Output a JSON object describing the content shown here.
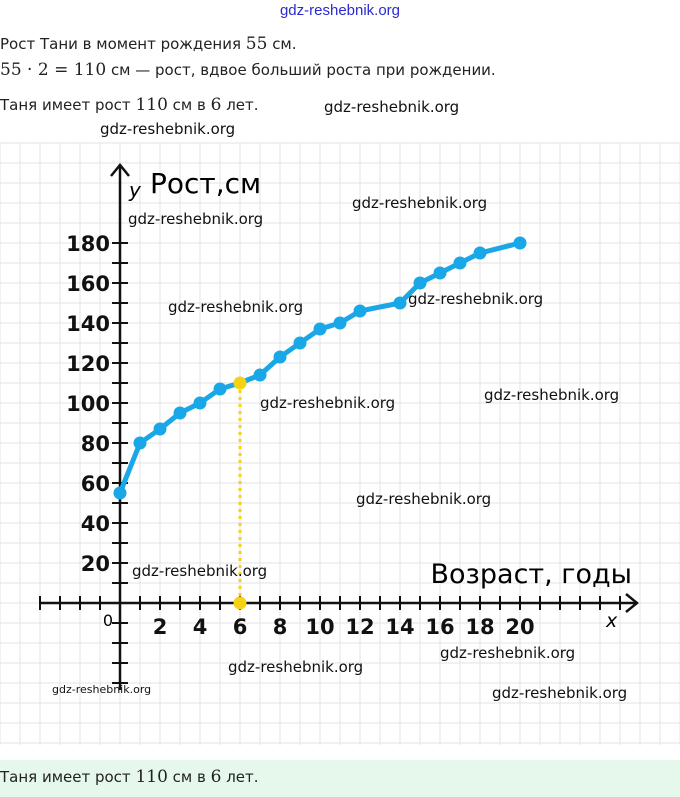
{
  "header": {
    "watermark": "gdz-reshebnik.org"
  },
  "text": {
    "line1": {
      "pre": "Рост Тани в момент рождения ",
      "num": "55",
      "post": " см."
    },
    "line2": {
      "expr": "55 · 2 = 110",
      "post": " см — рост, вдвое больший роста при рождении."
    },
    "line3": {
      "pre": "Таня имеет рост ",
      "num1": "110",
      "mid": " см в ",
      "num2": "6",
      "post": " лет."
    }
  },
  "answer": {
    "pre": "Таня имеет рост ",
    "num1": "110",
    "mid": " см в ",
    "num2": "6",
    "post": " лет."
  },
  "watermarks": [
    "gdz-reshebnik.org",
    "gdz-reshebnik.org",
    "gdz-reshebnik.org",
    "gdz-reshebnik.org",
    "gdz-reshebnik.org",
    "gdz-reshebnik.org",
    "gdz-reshebnik.org",
    "gdz-reshebnik.org",
    "gdz-reshebnik.org",
    "gdz-reshebnik.org",
    "gdz-reshebnik.org",
    "gdz-reshebnik.org",
    "gdz-reshebnik.org"
  ],
  "colors": {
    "line": "#1aa7e8",
    "highlight": "#f5d213",
    "grid": "#e3e3e3",
    "answer_bg": "#e6f8ec"
  },
  "chart_data": {
    "type": "line",
    "title": "",
    "xlabel": "Возраст, годы",
    "ylabel": "Рост,см",
    "x_axis_letter": "x",
    "y_axis_letter": "y",
    "origin_label": "0",
    "xlim": [
      -4,
      25
    ],
    "ylim": [
      -45,
      220
    ],
    "x_ticks": [
      "2",
      "4",
      "6",
      "8",
      "10",
      "12",
      "14",
      "16",
      "18",
      "20"
    ],
    "y_ticks": [
      "20",
      "40",
      "60",
      "80",
      "100",
      "120",
      "140",
      "160",
      "180"
    ],
    "grid": true,
    "series": [
      {
        "name": "Рост Тани",
        "x": [
          0,
          1,
          2,
          3,
          4,
          5,
          6,
          7,
          8,
          9,
          10,
          11,
          12,
          14,
          15,
          16,
          17,
          18,
          20
        ],
        "y": [
          55,
          80,
          87,
          95,
          100,
          107,
          110,
          114,
          123,
          130,
          137,
          140,
          146,
          150,
          160,
          165,
          170,
          175,
          180
        ]
      }
    ],
    "highlight": {
      "x": 6,
      "y": 110
    }
  }
}
